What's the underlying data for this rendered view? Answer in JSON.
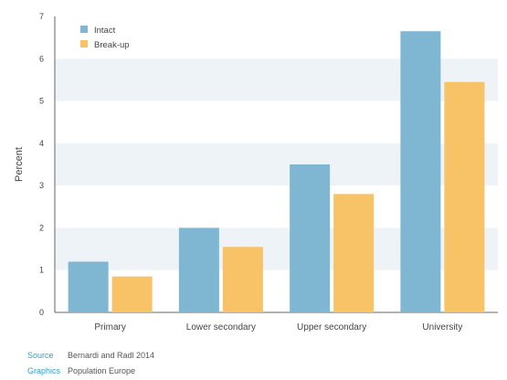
{
  "colors": {
    "intact": "#7FB7D2",
    "breakup": "#F8C266",
    "band": "#EEF3F7",
    "axis": "#666666",
    "text": "#444444",
    "credit_key": "#2FA0C8"
  },
  "chart_data": {
    "type": "bar",
    "title": "",
    "xlabel": "",
    "ylabel": "Percent",
    "ylim": [
      0,
      7
    ],
    "yticks": [
      "0",
      "1",
      "2",
      "3",
      "4",
      "5",
      "6",
      "7"
    ],
    "grid": "alternating horizontal bands",
    "legend_position": "top-left",
    "categories": [
      "Primary",
      "Lower secondary",
      "Upper secondary",
      "University"
    ],
    "series": [
      {
        "name": "Intact",
        "color": "#7FB7D2",
        "values": [
          1.2,
          2.0,
          3.5,
          6.65
        ]
      },
      {
        "name": "Break-up",
        "color": "#F8C266",
        "values": [
          0.85,
          1.55,
          2.8,
          5.45
        ]
      }
    ]
  },
  "credits": {
    "source_label": "Source",
    "source_value": "Bernardi and Radl 2014",
    "graphics_label": "Graphics",
    "graphics_value": "Population Europe"
  }
}
